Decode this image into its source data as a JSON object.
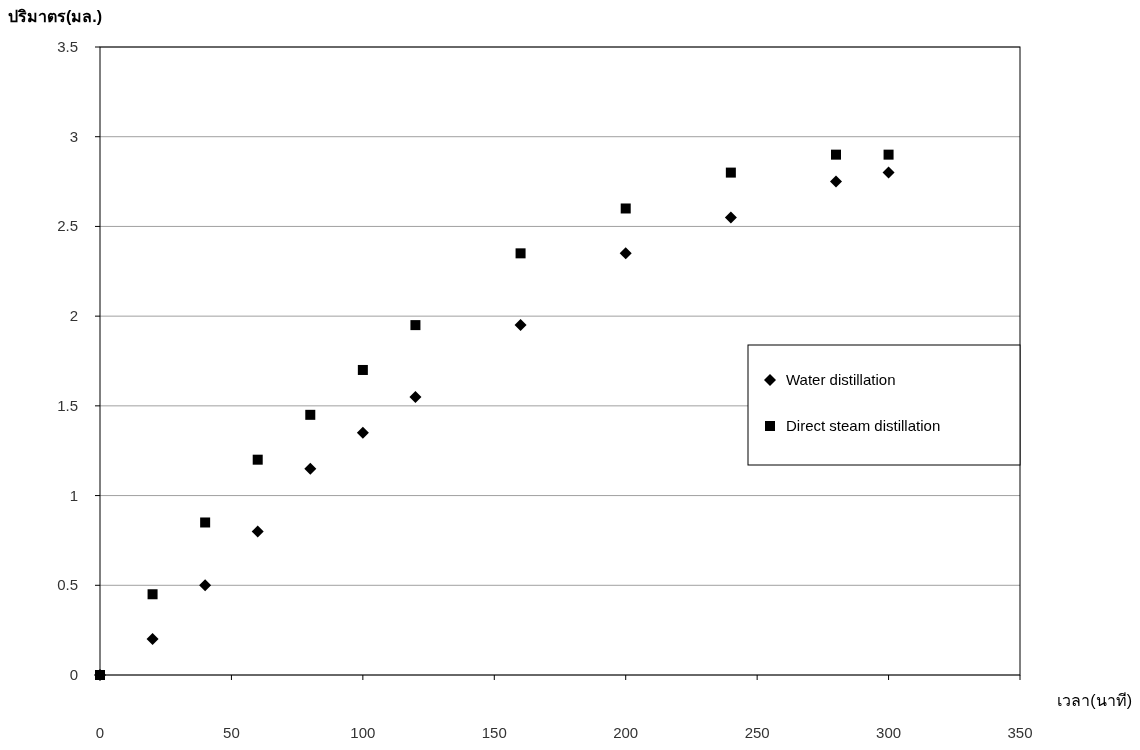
{
  "chart_data": {
    "type": "scatter",
    "xlabel": "เวลา(นาที)",
    "ylabel": "ปริมาตร(มล.)",
    "x": [
      0,
      20,
      40,
      60,
      80,
      100,
      120,
      160,
      200,
      240,
      280,
      300
    ],
    "series": [
      {
        "name": "Water distillation",
        "color": "#000000",
        "marker": "diamond",
        "values": [
          0,
          0.2,
          0.5,
          0.8,
          1.15,
          1.35,
          1.55,
          1.95,
          2.35,
          2.55,
          2.75,
          2.8
        ]
      },
      {
        "name": "Direct steam distillation",
        "color": "#000000",
        "marker": "square",
        "values": [
          0,
          0.45,
          0.85,
          1.2,
          1.45,
          1.7,
          1.95,
          2.35,
          2.6,
          2.8,
          2.9,
          2.9
        ]
      }
    ],
    "xlim": [
      0,
      350
    ],
    "xticks": [
      0,
      50,
      100,
      150,
      200,
      250,
      300,
      350
    ],
    "ylim": [
      0,
      3.5
    ],
    "yticks": [
      0,
      0.5,
      1,
      1.5,
      2,
      2.5,
      3,
      3.5
    ],
    "grid": "y",
    "legend": "right"
  }
}
